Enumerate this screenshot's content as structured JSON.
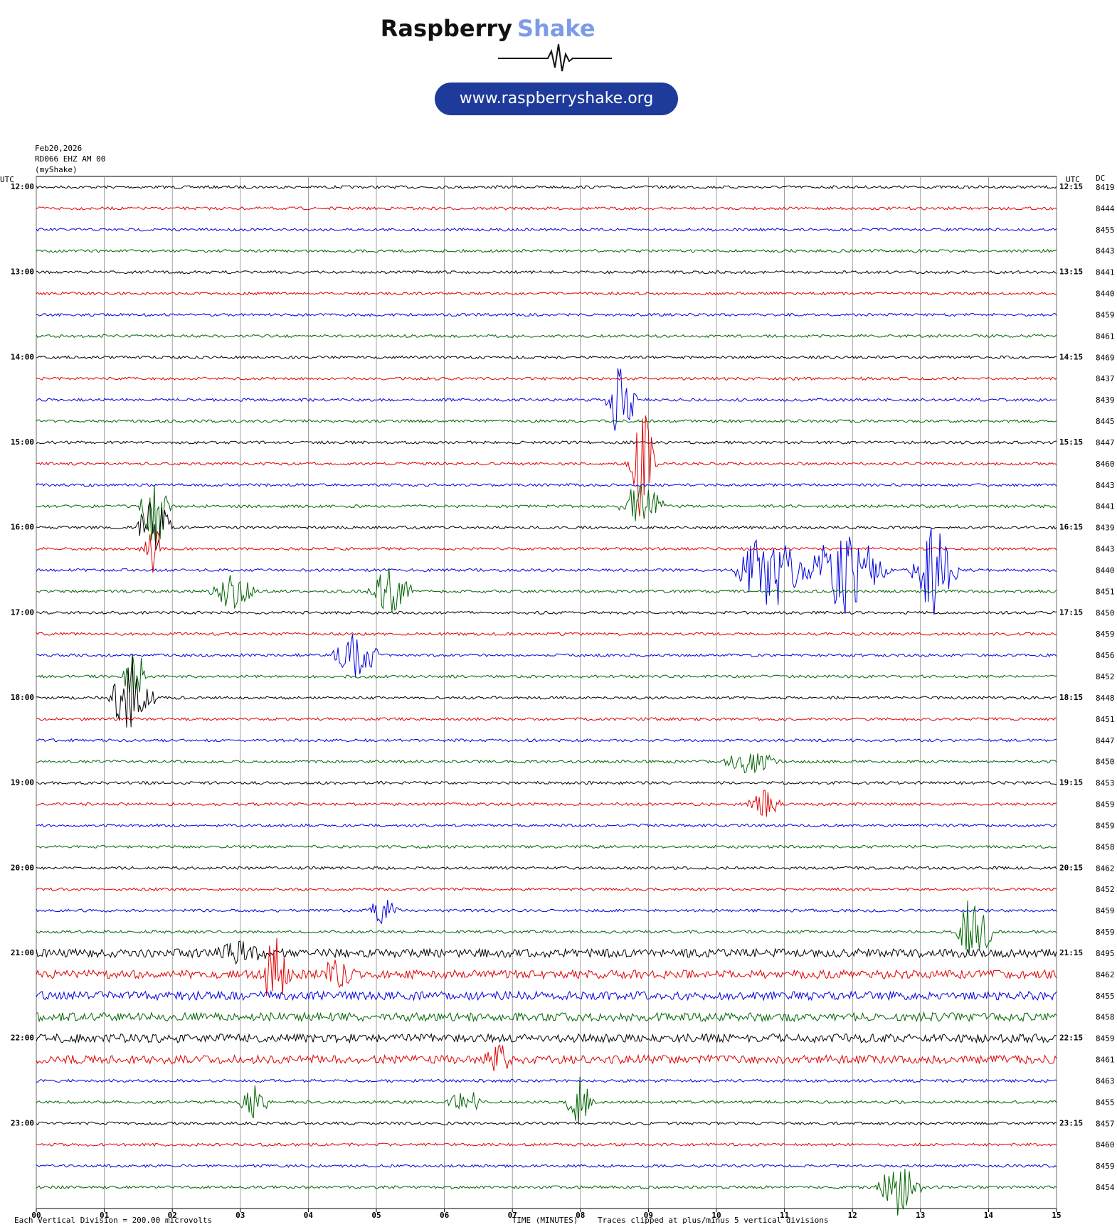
{
  "logo": {
    "word1": "Raspberry",
    "word2": "Shake",
    "url": "www.raspberryshake.org"
  },
  "chart_data": {
    "type": "helicorder",
    "date": "Feb20,2026",
    "station": "RD066 EHZ AM 00",
    "source": "(myShake)",
    "left_axis_title": "UTC",
    "right_axis_title": "UTC",
    "dc_title": "DC",
    "left_labels": [
      "12:00",
      "13:00",
      "14:00",
      "15:00",
      "16:00",
      "17:00",
      "18:00",
      "19:00",
      "20:00",
      "21:00",
      "22:00",
      "23:00"
    ],
    "right_labels": [
      "12:15",
      "13:15",
      "14:15",
      "15:15",
      "16:15",
      "17:15",
      "18:15",
      "19:15",
      "20:15",
      "21:15",
      "22:15",
      "23:15"
    ],
    "dc": [
      8419,
      8444,
      8455,
      8443,
      8441,
      8440,
      8459,
      8461,
      8469,
      8437,
      8439,
      8445,
      8447,
      8460,
      8443,
      8441,
      8439,
      8443,
      8440,
      8451,
      8450,
      8459,
      8456,
      8452,
      8448,
      8451,
      8447,
      8450,
      8453,
      8459,
      8459,
      8458,
      8462,
      8452,
      8459,
      8459,
      8495,
      8462,
      8455,
      8458,
      8459,
      8461,
      8463,
      8455,
      8457,
      8460,
      8459,
      8454
    ],
    "trace_colors": [
      "#000000",
      "#e00000",
      "#0000e0",
      "#006400"
    ],
    "xlim": [
      0,
      15
    ],
    "xticks": [
      {
        "value": 0,
        "label": "00"
      },
      {
        "value": 1,
        "label": "01"
      },
      {
        "value": 2,
        "label": "02"
      },
      {
        "value": 3,
        "label": "03"
      },
      {
        "value": 4,
        "label": "04"
      },
      {
        "value": 5,
        "label": "05"
      },
      {
        "value": 6,
        "label": "06"
      },
      {
        "value": 7,
        "label": "07"
      },
      {
        "value": 8,
        "label": "08"
      },
      {
        "value": 9,
        "label": "09"
      },
      {
        "value": 10,
        "label": "10"
      },
      {
        "value": 11,
        "label": "11"
      },
      {
        "value": 12,
        "label": "12"
      },
      {
        "value": 13,
        "label": "13"
      },
      {
        "value": 14,
        "label": "14"
      },
      {
        "value": 15,
        "label": "15"
      }
    ],
    "xlabel": "TIME (MINUTES)",
    "scale_note": "Each Vertical Division =  200.00 microvolts",
    "clip_note": "Traces clipped at plus/minus 5 vertical divisions",
    "grid": true
  }
}
